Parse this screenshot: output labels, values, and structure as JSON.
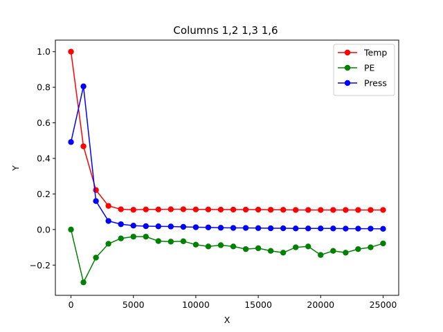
{
  "chart_data": {
    "type": "line",
    "title": "Columns 1,2 1,3 1,6",
    "xlabel": "X",
    "ylabel": "Y",
    "xlim": [
      -1250,
      26250
    ],
    "ylim": [
      -0.37,
      1.065
    ],
    "xticks": [
      0,
      5000,
      10000,
      15000,
      20000,
      25000
    ],
    "xtick_labels": [
      "0",
      "5000",
      "10000",
      "15000",
      "20000",
      "25000"
    ],
    "yticks": [
      -0.2,
      0.0,
      0.2,
      0.4,
      0.6,
      0.8,
      1.0
    ],
    "ytick_labels": [
      "−0.2",
      "0.0",
      "0.2",
      "0.4",
      "0.6",
      "0.8",
      "1.0"
    ],
    "grid": false,
    "legend_position": "top-right",
    "x": [
      0,
      1000,
      2000,
      3000,
      4000,
      5000,
      6000,
      7000,
      8000,
      9000,
      10000,
      11000,
      12000,
      13000,
      14000,
      15000,
      16000,
      17000,
      18000,
      19000,
      20000,
      21000,
      22000,
      23000,
      24000,
      25000
    ],
    "series": [
      {
        "name": "Temp",
        "color": "#ff0000",
        "values": [
          1.0,
          0.468,
          0.222,
          0.133,
          0.114,
          0.111,
          0.113,
          0.113,
          0.114,
          0.114,
          0.113,
          0.113,
          0.112,
          0.112,
          0.112,
          0.112,
          0.111,
          0.111,
          0.11,
          0.11,
          0.11,
          0.11,
          0.11,
          0.11,
          0.11,
          0.11
        ]
      },
      {
        "name": "PE",
        "color": "#008000",
        "values": [
          0.0,
          -0.297,
          -0.158,
          -0.08,
          -0.05,
          -0.04,
          -0.04,
          -0.065,
          -0.068,
          -0.066,
          -0.085,
          -0.095,
          -0.088,
          -0.095,
          -0.11,
          -0.105,
          -0.12,
          -0.13,
          -0.1,
          -0.095,
          -0.143,
          -0.12,
          -0.13,
          -0.11,
          -0.1,
          -0.078
        ]
      },
      {
        "name": "Press",
        "color": "#0000ff",
        "values": [
          0.492,
          0.805,
          0.16,
          0.048,
          0.03,
          0.022,
          0.019,
          0.018,
          0.017,
          0.015,
          0.013,
          0.012,
          0.01,
          0.009,
          0.009,
          0.008,
          0.007,
          0.007,
          0.006,
          0.006,
          0.006,
          0.006,
          0.005,
          0.005,
          0.005,
          0.004
        ]
      }
    ]
  }
}
